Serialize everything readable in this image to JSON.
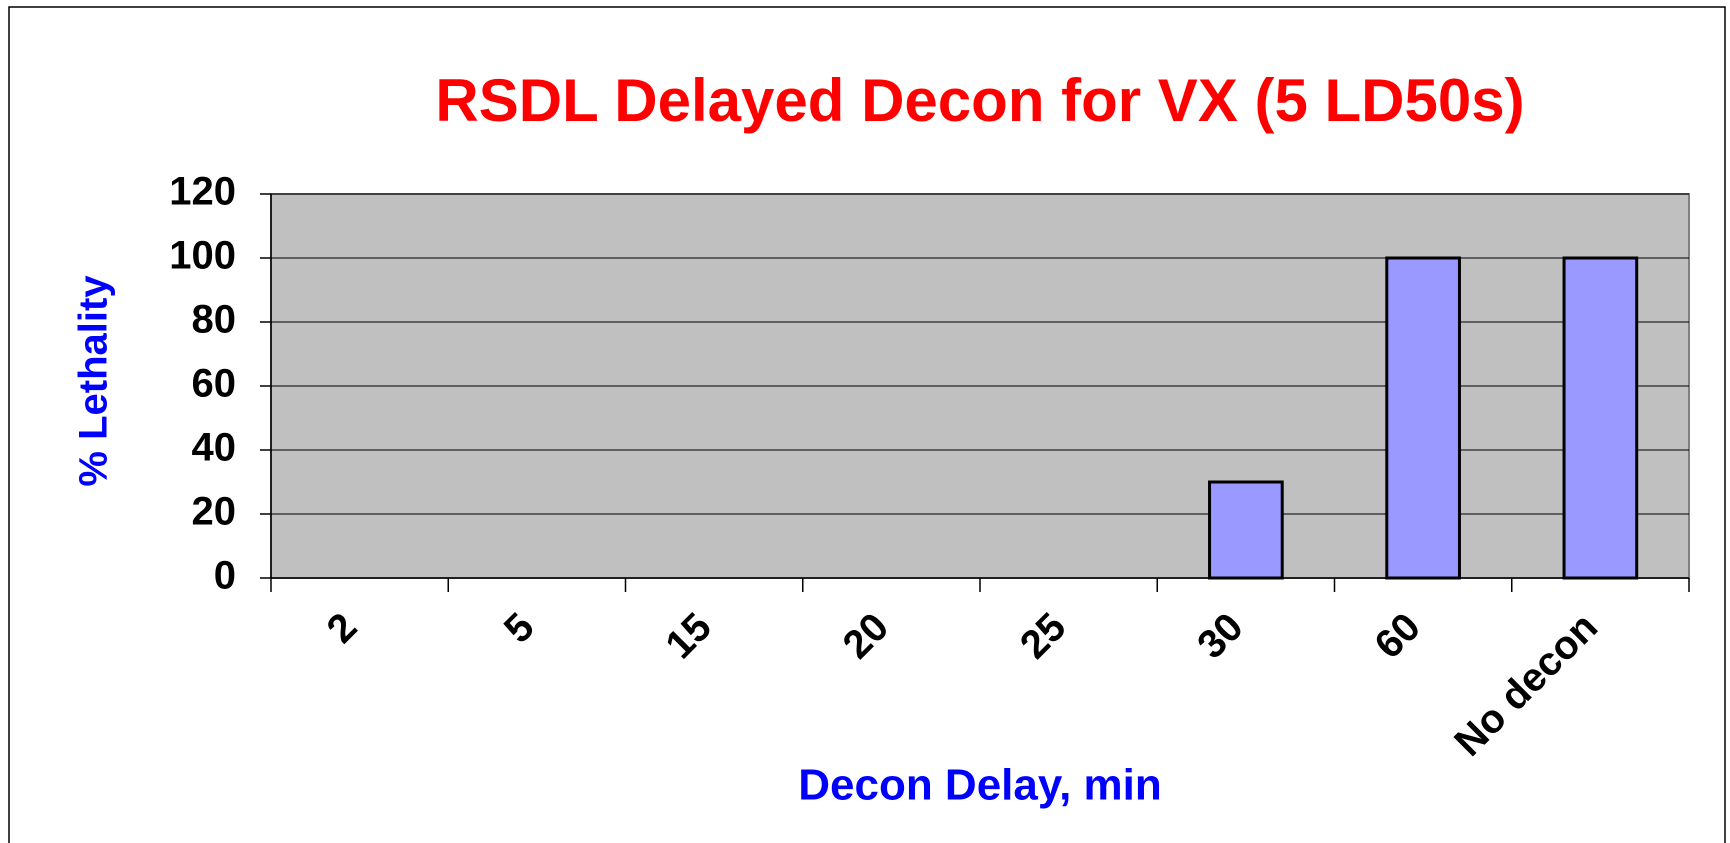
{
  "chart_data": {
    "type": "bar",
    "title": "RSDL Delayed Decon for VX (5 LD50s)",
    "x_label": "Decon Delay, min",
    "y_label": "% Lethality",
    "categories": [
      "2",
      "5",
      "15",
      "20",
      "25",
      "30",
      "60",
      "No decon"
    ],
    "values": [
      0,
      0,
      0,
      0,
      0,
      30,
      100,
      100
    ],
    "color": "#9999ff",
    "ylim": [
      0,
      120
    ],
    "yticks": [
      0,
      20,
      40,
      60,
      80,
      100,
      120
    ],
    "grid": true
  }
}
